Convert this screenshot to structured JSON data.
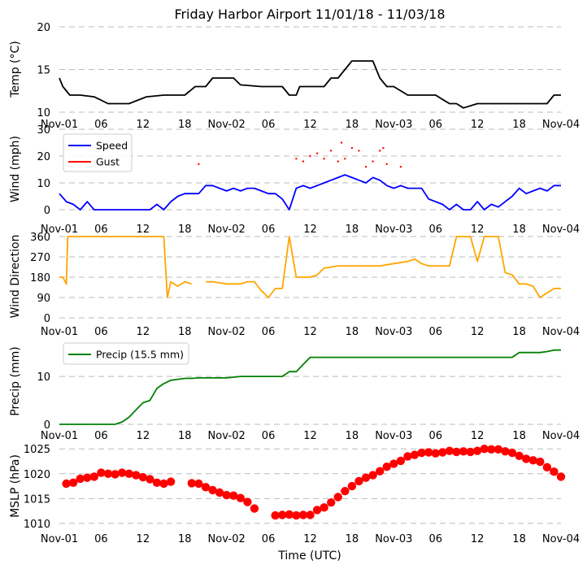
{
  "figure_title": "Friday Harbor Airport 11/01/18 - 11/03/18",
  "x_axis_label": "Time (UTC)",
  "time_ticks": [
    "Nov-01",
    "06",
    "12",
    "18",
    "Nov-02",
    "06",
    "12",
    "18",
    "Nov-03",
    "06",
    "12",
    "18",
    "Nov-04"
  ],
  "colors": {
    "temp": "#000000",
    "speed": "#0000ff",
    "gust": "#ff0000",
    "direction": "#ffa500",
    "precip": "#008000",
    "mslp": "#ff0000",
    "grid": "#bbbbbb"
  },
  "chart_data": [
    {
      "type": "line",
      "name": "temperature",
      "ylabel": "Temp ($^\\circ$C)",
      "ylabel_display": "Temp (°C)",
      "ylim": [
        10,
        20
      ],
      "yticks": [
        10,
        15,
        20
      ],
      "xlim_hours": [
        0,
        72
      ],
      "grid": true,
      "series": [
        {
          "color": "#000000",
          "x": [
            0,
            0.5,
            1.5,
            3,
            5,
            7,
            9,
            10,
            12.5,
            15,
            16,
            18,
            19.5,
            21,
            22,
            24,
            25,
            26,
            29,
            30,
            31,
            32,
            33,
            34,
            34.5,
            35,
            36,
            37,
            38,
            39,
            40,
            41,
            42,
            43,
            44,
            45,
            46,
            47,
            48,
            50,
            52,
            54,
            55,
            56,
            57,
            58,
            60,
            62,
            64,
            66,
            68,
            70,
            71,
            72
          ],
          "y": [
            14,
            13,
            12,
            12,
            11.8,
            11,
            11,
            11,
            11.8,
            12,
            12,
            12,
            13,
            13,
            14,
            14,
            14,
            13.2,
            13,
            13,
            13,
            13,
            12,
            12,
            13,
            13,
            13,
            13,
            13,
            14,
            14,
            15,
            16,
            16,
            16,
            16,
            14,
            13,
            13,
            12,
            12,
            12,
            11.5,
            11,
            11,
            10.5,
            11,
            11,
            11,
            11,
            11,
            11,
            12,
            12
          ]
        }
      ]
    },
    {
      "type": "line",
      "name": "wind",
      "ylabel": "Wind (mph)",
      "ylim": [
        0,
        30
      ],
      "yticks": [
        0,
        10,
        20,
        30
      ],
      "xlim_hours": [
        0,
        72
      ],
      "grid": true,
      "legend": {
        "position": "upper left",
        "entries": [
          "Speed",
          "Gust"
        ]
      },
      "series": [
        {
          "name": "Speed",
          "color": "#0000ff",
          "x": [
            0,
            1,
            2,
            3,
            4,
            5,
            6,
            8,
            10,
            12,
            13,
            14,
            15,
            16,
            17,
            18,
            19,
            20,
            21,
            22,
            23,
            24,
            25,
            26,
            27,
            28,
            29,
            30,
            31,
            32,
            33,
            34,
            35,
            36,
            37,
            38,
            39,
            40,
            41,
            42,
            43,
            44,
            45,
            46,
            47,
            48,
            49,
            50,
            51,
            52,
            53,
            54,
            55,
            56,
            57,
            58,
            59,
            60,
            61,
            62,
            63,
            64,
            65,
            66,
            67,
            68,
            69,
            70,
            71,
            72
          ],
          "y": [
            6,
            3,
            2,
            0,
            3,
            0,
            0,
            0,
            0,
            0,
            0,
            2,
            0,
            3,
            5,
            6,
            6,
            6,
            9,
            9,
            8,
            7,
            8,
            7,
            8,
            8,
            7,
            6,
            6,
            4,
            0,
            8,
            9,
            8,
            9,
            10,
            11,
            12,
            13,
            12,
            11,
            10,
            12,
            11,
            9,
            8,
            9,
            8,
            8,
            8,
            4,
            3,
            2,
            0,
            2,
            0,
            0,
            3,
            0,
            2,
            1,
            3,
            5,
            8,
            6,
            7,
            8,
            7,
            9,
            9
          ]
        },
        {
          "name": "Gust",
          "color": "#ff0000",
          "x": [
            20,
            34,
            35,
            36,
            37,
            38,
            39,
            40,
            40.5,
            41,
            42,
            43,
            44,
            45,
            46,
            46.5,
            47,
            49
          ],
          "y": [
            17,
            19,
            18,
            20,
            21,
            19,
            22,
            18,
            25,
            19,
            23,
            22,
            16,
            18,
            22,
            23,
            17,
            16
          ]
        }
      ]
    },
    {
      "type": "line",
      "name": "wind_direction",
      "ylabel": "Wind Direction",
      "ylim": [
        0,
        360
      ],
      "yticks": [
        0,
        90,
        180,
        270,
        360
      ],
      "xlim_hours": [
        0,
        72
      ],
      "grid": true,
      "series": [
        {
          "color": "#ffa500",
          "x": [
            0,
            0.5,
            1,
            1.2,
            2,
            4,
            6,
            8,
            10,
            12,
            13,
            14,
            15,
            15.5,
            16,
            17,
            18,
            19,
            20,
            21,
            22,
            24,
            26,
            27,
            28,
            29,
            30,
            31,
            32,
            33,
            34,
            35,
            36,
            37,
            38,
            40,
            42,
            44,
            46,
            48,
            50,
            51,
            52,
            53,
            54,
            55,
            56,
            57,
            58,
            59,
            60,
            61,
            62,
            63,
            64,
            65,
            66,
            67,
            68,
            69,
            70,
            71,
            72
          ],
          "y": [
            180,
            180,
            150,
            360,
            360,
            360,
            360,
            360,
            360,
            360,
            360,
            360,
            360,
            90,
            160,
            140,
            160,
            150,
            null,
            160,
            160,
            150,
            150,
            160,
            160,
            120,
            90,
            130,
            130,
            360,
            180,
            180,
            180,
            190,
            220,
            230,
            230,
            230,
            230,
            240,
            250,
            260,
            240,
            230,
            230,
            230,
            230,
            360,
            360,
            360,
            250,
            360,
            360,
            360,
            200,
            190,
            150,
            150,
            140,
            90,
            110,
            130,
            130
          ]
        }
      ]
    },
    {
      "type": "line",
      "name": "precipitation",
      "ylabel": "Precip (mm)",
      "ylim": [
        0,
        18
      ],
      "yticks": [
        0,
        10
      ],
      "xlim_hours": [
        0,
        72
      ],
      "grid": true,
      "legend": {
        "position": "upper left",
        "entries": [
          "Precip (15.5 mm)"
        ]
      },
      "series": [
        {
          "name": "Precip (15.5 mm)",
          "color": "#008000",
          "x": [
            0,
            4,
            8,
            9,
            10,
            11,
            12,
            13,
            14,
            15,
            16,
            17,
            18,
            19,
            20,
            22,
            24,
            26,
            28,
            30,
            31,
            32,
            33,
            34,
            35,
            36,
            38,
            40,
            42,
            44,
            46,
            48,
            50,
            52,
            54,
            56,
            58,
            60,
            62,
            64,
            65,
            66,
            67,
            68,
            69,
            70,
            71,
            72
          ],
          "y": [
            0,
            0,
            0,
            0.5,
            1.5,
            3,
            4.5,
            5,
            7.5,
            8.5,
            9.2,
            9.4,
            9.6,
            9.6,
            9.7,
            9.7,
            9.7,
            10,
            10,
            10,
            10,
            10,
            11,
            11,
            12.5,
            14,
            14,
            14,
            14,
            14,
            14,
            14,
            14,
            14,
            14,
            14,
            14,
            14,
            14,
            14,
            14,
            15,
            15,
            15,
            15,
            15.2,
            15.5,
            15.5
          ]
        }
      ]
    },
    {
      "type": "scatter",
      "name": "mslp",
      "ylabel": "MSLP (hPa)",
      "ylim": [
        1009,
        1027
      ],
      "yticks": [
        1010,
        1015,
        1020,
        1025
      ],
      "xlim_hours": [
        0,
        72
      ],
      "grid": true,
      "series": [
        {
          "color": "#ff0000",
          "x": [
            1,
            2,
            3,
            4,
            5,
            6,
            7,
            8,
            9,
            10,
            11,
            12,
            13,
            14,
            15,
            16,
            19,
            20,
            21,
            22,
            23,
            24,
            25,
            26,
            27,
            28,
            31,
            32,
            33,
            34,
            35,
            36,
            37,
            38,
            39,
            40,
            41,
            42,
            43,
            44,
            45,
            46,
            47,
            48,
            49,
            50,
            51,
            52,
            53,
            54,
            55,
            56,
            57,
            58,
            59,
            60,
            61,
            62,
            63,
            64,
            65,
            66,
            67,
            68,
            69,
            70,
            71,
            72
          ],
          "y": [
            1018,
            1018.2,
            1019,
            1019.2,
            1019.4,
            1020.2,
            1020,
            1019.9,
            1020.2,
            1020,
            1019.7,
            1019.3,
            1018.9,
            1018.2,
            1018,
            1018.4,
            1018.1,
            1018,
            1017.3,
            1016.7,
            1016.2,
            1015.7,
            1015.6,
            1015.1,
            1014.3,
            1013,
            1011.6,
            1011.7,
            1011.8,
            1011.6,
            1011.7,
            1011.7,
            1012.7,
            1013.2,
            1014.2,
            1015.3,
            1016.5,
            1017.5,
            1018.5,
            1019.2,
            1019.7,
            1020.5,
            1021.4,
            1022,
            1022.6,
            1023.5,
            1023.8,
            1024.2,
            1024.3,
            1024.1,
            1024.3,
            1024.6,
            1024.4,
            1024.5,
            1024.4,
            1024.6,
            1025,
            1024.9,
            1024.9,
            1024.5,
            1024.2,
            1023.6,
            1023,
            1022.7,
            1022.4,
            1021.3,
            1020.4,
            1019.4
          ]
        }
      ]
    }
  ]
}
